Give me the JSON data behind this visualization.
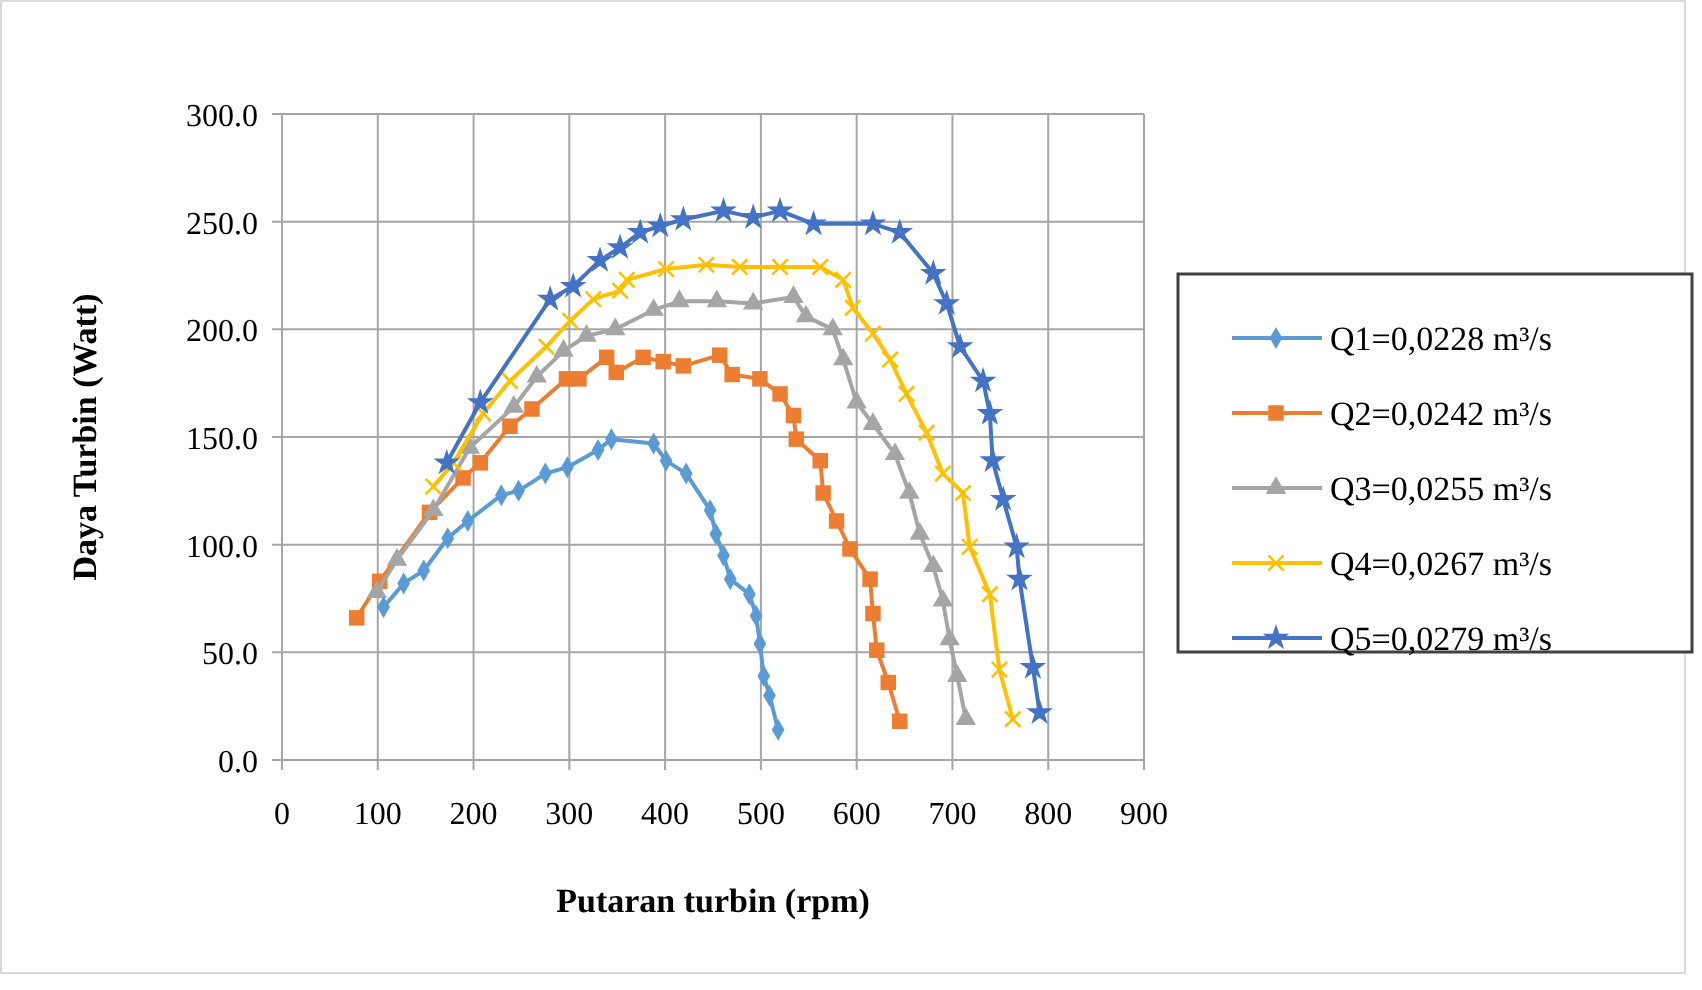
{
  "chart_data": {
    "type": "line",
    "xlabel": "Putaran turbin (rpm)",
    "ylabel": "Daya Turbin (Watt)",
    "xlim": [
      0,
      900
    ],
    "xticks": [
      0,
      100,
      200,
      300,
      400,
      500,
      600,
      700,
      800,
      900
    ],
    "ylim": [
      0,
      300
    ],
    "yticks": [
      {
        "value": 0,
        "label": "0.0"
      },
      {
        "value": 50,
        "label": "50.0"
      },
      {
        "value": 100,
        "label": "100.0"
      },
      {
        "value": 150,
        "label": "150.0"
      },
      {
        "value": 200,
        "label": "200.0"
      },
      {
        "value": 250,
        "label": "250.0"
      },
      {
        "value": 300,
        "label": "300.0"
      }
    ],
    "grid": true,
    "legend": "right",
    "line_style": "solid",
    "series": [
      {
        "name": "Q1=0,0228 m³/s",
        "color": "#5b9bd5",
        "marker": "diamond",
        "x": [
          106,
          127,
          148,
          173,
          194,
          229,
          247,
          275,
          298,
          330,
          344,
          388,
          401,
          422,
          447,
          453,
          461,
          468,
          488,
          495,
          499,
          503,
          509,
          518
        ],
        "values": [
          71,
          82,
          88,
          103,
          111,
          123,
          125,
          133,
          136,
          144,
          149,
          147,
          139,
          133,
          116,
          105,
          95,
          84,
          77,
          67,
          54,
          39,
          30,
          14
        ]
      },
      {
        "name": "Q2=0,0242 m³/s",
        "color": "#ed7d31",
        "marker": "square",
        "x": [
          78,
          102,
          154,
          189,
          207,
          238,
          261,
          297,
          310,
          339,
          349,
          377,
          398,
          419,
          457,
          470,
          499,
          520,
          534,
          537,
          562,
          565,
          579,
          593,
          614,
          617,
          621,
          633,
          645
        ],
        "values": [
          66,
          83,
          115,
          131,
          138,
          155,
          163,
          177,
          177,
          187,
          180,
          187,
          185,
          183,
          188,
          179,
          177,
          170,
          160,
          149,
          139,
          124,
          111,
          98,
          84,
          68,
          51,
          36,
          18
        ]
      },
      {
        "name": "Q3=0,0255 m³/s",
        "color": "#a5a5a5",
        "marker": "triangle",
        "x": [
          99,
          120,
          158,
          196,
          242,
          266,
          294,
          318,
          348,
          388,
          415,
          454,
          492,
          534,
          547,
          575,
          586,
          600,
          617,
          640,
          655,
          666,
          680,
          690,
          697,
          705,
          714
        ],
        "values": [
          78,
          93,
          116,
          145,
          164,
          178,
          190,
          197,
          200,
          209,
          213,
          213,
          212,
          215,
          206,
          200,
          186,
          166,
          156,
          142,
          124,
          105,
          90,
          74,
          56,
          39,
          19
        ]
      },
      {
        "name": "Q4=0,0267 m³/s",
        "color": "#ffc000",
        "marker": "cross",
        "x": [
          158,
          179,
          210,
          238,
          276,
          301,
          325,
          353,
          360,
          401,
          443,
          478,
          520,
          562,
          586,
          596,
          617,
          635,
          652,
          673,
          690,
          711,
          718,
          739,
          749,
          763
        ],
        "values": [
          127,
          138,
          161,
          176,
          192,
          204,
          214,
          218,
          223,
          228,
          230,
          229,
          229,
          229,
          223,
          210,
          198,
          186,
          170,
          152,
          133,
          124,
          99,
          77,
          42,
          19
        ]
      },
      {
        "name": "Q5=0,0279 m³/s",
        "color": "#4472c4",
        "marker": "star",
        "x": [
          172,
          207,
          280,
          304,
          332,
          353,
          374,
          395,
          419,
          461,
          492,
          520,
          555,
          617,
          645,
          680,
          694,
          708,
          732,
          739,
          742,
          753,
          767,
          770,
          784,
          791
        ],
        "values": [
          138,
          166,
          214,
          220,
          232,
          238,
          245,
          248,
          251,
          255,
          252,
          255,
          249,
          249,
          245,
          226,
          212,
          192,
          176,
          161,
          139,
          121,
          99,
          84,
          43,
          22
        ]
      }
    ]
  }
}
